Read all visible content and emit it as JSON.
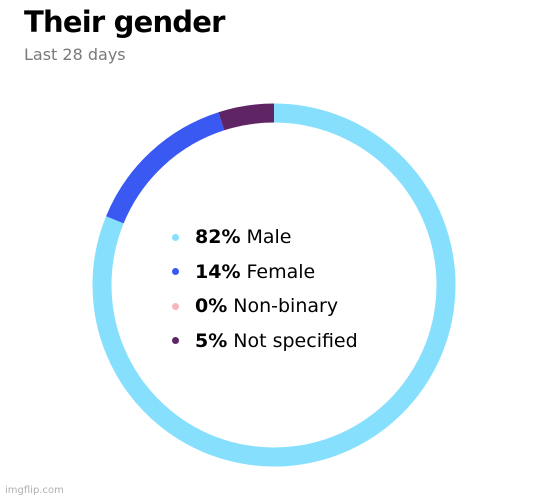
{
  "header": {
    "title": "Their gender",
    "subtitle": "Last 28 days"
  },
  "chart_data": {
    "type": "pie",
    "variant": "donut",
    "title": "Their gender",
    "subtitle": "Last 28 days",
    "unit": "%",
    "legend_position": "center",
    "slices": [
      {
        "label": "Male",
        "value": 82,
        "display": "82%",
        "color": "#86DFFD"
      },
      {
        "label": "Female",
        "value": 14,
        "display": "14%",
        "color": "#3A58F2"
      },
      {
        "label": "Non-binary",
        "value": 0,
        "display": "0%",
        "color": "#F7B5BC"
      },
      {
        "label": "Not specified",
        "value": 5,
        "display": "5%",
        "color": "#5E2463"
      }
    ]
  },
  "watermark": "imgflip.com"
}
